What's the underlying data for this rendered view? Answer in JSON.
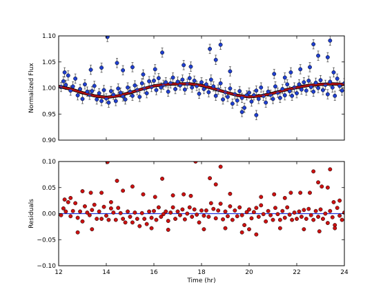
{
  "chart_data": [
    {
      "id": "flux",
      "type": "scatter",
      "title": "",
      "xlabel": "",
      "ylabel": "Normalized Flux",
      "xlim": [
        12,
        24
      ],
      "ylim": [
        0.9,
        1.1
      ],
      "xticks": [
        12,
        14,
        16,
        18,
        20,
        22,
        24
      ],
      "yticks": [
        0.9,
        0.95,
        1.0,
        1.05,
        1.1
      ],
      "ytick_labels": [
        "0.90",
        "0.95",
        "1.00",
        "1.05",
        "1.10"
      ],
      "grid": false,
      "error_bar": 0.009,
      "colors": {
        "points": "#1f3fcf",
        "edge": "#000000",
        "errorbars": "#555555",
        "model": "#b01010"
      },
      "model_curve": {
        "description": "sinusoidal model",
        "x": [
          12.0,
          12.5,
          13.0,
          13.5,
          14.0,
          14.5,
          15.0,
          15.5,
          16.0,
          16.5,
          17.0,
          17.5,
          18.0,
          18.5,
          19.0,
          19.5,
          20.0,
          20.5,
          21.0,
          21.5,
          22.0,
          22.5,
          23.0,
          23.5,
          24.0
        ],
        "y": [
          1.003,
          0.998,
          0.991,
          0.985,
          0.982,
          0.985,
          0.991,
          0.998,
          1.004,
          1.007,
          1.008,
          1.008,
          1.005,
          0.999,
          0.992,
          0.986,
          0.983,
          0.985,
          0.99,
          0.996,
          1.001,
          1.005,
          1.007,
          1.008,
          1.007
        ]
      },
      "series": [
        {
          "x": [
            12.1,
            12.2,
            12.3,
            12.4,
            12.5,
            12.6,
            12.7,
            12.8,
            12.9,
            13.0,
            13.1,
            13.2,
            13.3,
            13.4,
            13.5,
            13.6,
            13.7,
            13.8,
            13.9,
            14.0,
            14.1,
            14.2,
            14.3,
            14.4,
            14.5,
            14.6,
            14.7,
            14.8,
            14.9,
            15.0,
            15.1,
            15.2,
            15.3,
            15.4,
            15.5,
            15.6,
            15.7,
            15.8,
            15.9,
            16.0,
            16.1,
            16.2,
            16.3,
            16.4,
            16.5,
            16.6,
            16.7,
            16.8,
            16.9,
            17.0,
            17.1,
            17.2,
            17.3,
            17.4,
            17.5,
            17.6,
            17.7,
            17.8,
            17.9,
            18.0,
            18.1,
            18.2,
            18.3,
            18.4,
            18.5,
            18.6,
            18.7,
            18.8,
            18.9,
            19.0,
            19.1,
            19.2,
            19.3,
            19.4,
            19.5,
            19.6,
            19.7,
            19.8,
            19.9,
            20.0,
            20.1,
            20.2,
            20.3,
            20.4,
            20.5,
            20.6,
            20.7,
            20.8,
            20.9,
            21.0,
            21.1,
            21.2,
            21.3,
            21.4,
            21.5,
            21.6,
            21.7,
            21.8,
            21.9,
            22.0,
            22.1,
            22.2,
            22.3,
            22.4,
            22.5,
            22.6,
            22.7,
            22.8,
            22.9,
            23.0,
            23.1,
            23.2,
            23.3,
            23.4,
            23.5,
            23.6,
            23.7,
            23.8,
            23.9,
            24.0
          ],
          "y": [
            1.002,
            1.013,
            1.006,
            1.024,
            0.995,
            1.003,
            1.018,
            0.986,
            0.998,
            0.979,
            1.007,
            0.993,
            0.987,
            0.994,
            1.004,
            0.978,
            0.99,
            0.975,
            0.996,
            0.98,
            0.972,
            0.994,
            0.987,
            0.975,
            0.999,
            0.991,
            0.984,
            0.978,
            1.001,
            0.993,
            0.985,
            1.005,
            0.996,
            0.983,
            1.009,
            0.999,
            0.99,
            1.013,
            1.002,
            1.014,
            0.996,
            1.019,
            1.001,
            1.006,
            1.011,
            0.993,
            1.009,
            1.02,
            0.998,
            1.012,
            1.005,
            1.016,
            0.997,
            1.008,
            1.019,
            1.001,
            1.014,
            1.004,
            0.989,
            1.011,
            0.998,
            1.007,
            0.992,
            1.016,
            1.003,
            0.985,
            0.997,
            1.009,
            0.978,
            0.992,
            0.983,
            0.999,
            0.97,
            0.988,
            0.976,
            0.994,
            0.981,
            0.962,
            0.986,
            0.991,
            0.974,
            0.986,
            0.995,
            0.979,
            1.001,
            0.985,
            0.972,
            0.993,
            0.987,
            0.979,
            1.003,
            0.991,
            0.981,
            0.998,
            0.986,
            1.007,
            0.994,
            0.985,
            1.001,
            0.99,
            1.007,
            0.997,
            1.011,
            0.995,
            1.014,
            1.002,
            0.993,
            1.01,
            1.0,
            1.015,
            0.996,
            1.006,
            0.988,
            1.012,
            1.001,
            0.985,
            1.018,
            1.004,
            0.995,
            1.009
          ],
          "extra_points": {
            "x": [
              12.25,
              13.35,
              13.8,
              14.05,
              14.45,
              14.7,
              15.1,
              15.55,
              16.05,
              16.35,
              17.25,
              17.55,
              18.35,
              18.6,
              18.8,
              19.2,
              19.7,
              20.3,
              21.05,
              21.5,
              21.75,
              22.15,
              22.55,
              22.7,
              22.9,
              23.3,
              23.4,
              23.55
            ],
            "y": [
              1.03,
              1.035,
              1.039,
              1.098,
              1.048,
              1.034,
              1.04,
              1.026,
              1.036,
              1.068,
              1.044,
              1.041,
              1.075,
              1.054,
              1.083,
              1.032,
              0.954,
              0.948,
              1.027,
              1.02,
              1.03,
              1.036,
              1.04,
              1.084,
              1.062,
              1.059,
              1.091,
              1.03
            ]
          }
        }
      ]
    },
    {
      "id": "residuals",
      "type": "scatter",
      "title": "",
      "xlabel": "Time (hr)",
      "ylabel": "Residuals",
      "xlim": [
        12,
        24
      ],
      "ylim": [
        -0.1,
        0.1
      ],
      "xticks": [
        12,
        14,
        16,
        18,
        20,
        22,
        24
      ],
      "xtick_labels": [
        "12",
        "14",
        "16",
        "18",
        "20",
        "22",
        "24"
      ],
      "yticks": [
        -0.1,
        -0.05,
        0.0,
        0.05,
        0.1
      ],
      "ytick_labels": [
        "−0.10",
        "−0.05",
        "0.00",
        "0.05",
        "0.10"
      ],
      "grid": false,
      "zero_line": 0.0,
      "colors": {
        "points": "#cc1111",
        "edge": "#000000",
        "zero_line": "#2233dd"
      },
      "series": [
        {
          "x": [
            12.1,
            12.2,
            12.3,
            12.4,
            12.5,
            12.6,
            12.7,
            12.8,
            12.9,
            13.0,
            13.1,
            13.2,
            13.3,
            13.4,
            13.5,
            13.6,
            13.7,
            13.8,
            13.9,
            14.0,
            14.1,
            14.2,
            14.3,
            14.4,
            14.5,
            14.6,
            14.7,
            14.8,
            14.9,
            15.0,
            15.1,
            15.2,
            15.3,
            15.4,
            15.5,
            15.6,
            15.7,
            15.8,
            15.9,
            16.0,
            16.1,
            16.2,
            16.3,
            16.4,
            16.5,
            16.6,
            16.7,
            16.8,
            16.9,
            17.0,
            17.1,
            17.2,
            17.3,
            17.4,
            17.5,
            17.6,
            17.7,
            17.8,
            17.9,
            18.0,
            18.1,
            18.2,
            18.3,
            18.4,
            18.5,
            18.6,
            18.7,
            18.8,
            18.9,
            19.0,
            19.1,
            19.2,
            19.3,
            19.4,
            19.5,
            19.6,
            19.7,
            19.8,
            19.9,
            20.0,
            20.1,
            20.2,
            20.3,
            20.4,
            20.5,
            20.6,
            20.7,
            20.8,
            20.9,
            21.0,
            21.1,
            21.2,
            21.3,
            21.4,
            21.5,
            21.6,
            21.7,
            21.8,
            21.9,
            22.0,
            22.1,
            22.2,
            22.3,
            22.4,
            22.5,
            22.6,
            22.7,
            22.8,
            22.9,
            23.0,
            23.1,
            23.2,
            23.3,
            23.4,
            23.5,
            23.6,
            23.7,
            23.8,
            23.9,
            24.0
          ],
          "y": [
            -0.003,
            0.01,
            0.004,
            0.022,
            -0.005,
            0.005,
            0.02,
            -0.008,
            0.004,
            -0.015,
            0.014,
            0.002,
            -0.003,
            0.007,
            0.017,
            -0.01,
            0.004,
            -0.01,
            0.013,
            -0.004,
            -0.012,
            0.01,
            0.002,
            -0.012,
            0.011,
            0.001,
            -0.01,
            -0.017,
            0.004,
            -0.006,
            -0.017,
            0.002,
            -0.01,
            -0.024,
            0.001,
            -0.01,
            -0.02,
            0.004,
            -0.008,
            0.005,
            -0.012,
            0.012,
            -0.006,
            -0.001,
            0.004,
            -0.014,
            0.002,
            0.012,
            -0.01,
            0.004,
            -0.003,
            0.008,
            -0.011,
            0.0,
            0.012,
            -0.006,
            0.008,
            -0.002,
            -0.017,
            0.006,
            -0.004,
            0.006,
            -0.006,
            0.02,
            0.009,
            -0.009,
            0.006,
            0.019,
            -0.011,
            0.004,
            -0.005,
            0.014,
            -0.012,
            0.006,
            -0.005,
            0.012,
            -0.003,
            -0.022,
            0.003,
            0.008,
            -0.009,
            0.003,
            0.011,
            -0.006,
            0.016,
            -0.001,
            -0.015,
            0.005,
            -0.003,
            -0.012,
            0.011,
            -0.001,
            -0.012,
            0.005,
            -0.008,
            0.012,
            -0.002,
            -0.012,
            0.002,
            -0.01,
            0.004,
            -0.006,
            0.007,
            -0.01,
            0.009,
            -0.003,
            -0.012,
            0.005,
            -0.006,
            0.008,
            -0.01,
            0.0,
            -0.018,
            0.005,
            -0.007,
            -0.022,
            0.011,
            -0.004,
            -0.012,
            0.002
          ],
          "extra_points": {
            "x": [
              12.25,
              12.5,
              13.0,
              13.35,
              13.8,
              14.05,
              14.2,
              14.45,
              14.7,
              15.1,
              15.55,
              16.05,
              16.35,
              16.8,
              17.25,
              17.55,
              17.75,
              18.35,
              18.6,
              18.8,
              19.2,
              19.7,
              20.3,
              20.5,
              21.05,
              21.5,
              21.75,
              22.15,
              22.55,
              22.7,
              22.9,
              23.05,
              23.3,
              23.4,
              23.55,
              23.8,
              12.8,
              13.4,
              15.9,
              16.6,
              18.1,
              19.0,
              20.0,
              21.3,
              22.3,
              22.95,
              23.6
            ],
            "y": [
              0.027,
              0.03,
              0.043,
              0.04,
              0.04,
              0.099,
              0.022,
              0.063,
              0.044,
              0.052,
              0.037,
              0.032,
              0.067,
              0.035,
              0.037,
              0.034,
              0.1,
              0.068,
              0.056,
              0.09,
              0.038,
              -0.036,
              -0.04,
              0.032,
              0.037,
              0.03,
              0.04,
              0.04,
              0.04,
              0.081,
              0.06,
              0.052,
              0.05,
              0.085,
              0.022,
              0.025,
              -0.036,
              -0.03,
              -0.028,
              -0.031,
              -0.03,
              -0.028,
              -0.03,
              -0.028,
              -0.03,
              -0.034,
              -0.028
            ]
          }
        }
      ]
    }
  ]
}
